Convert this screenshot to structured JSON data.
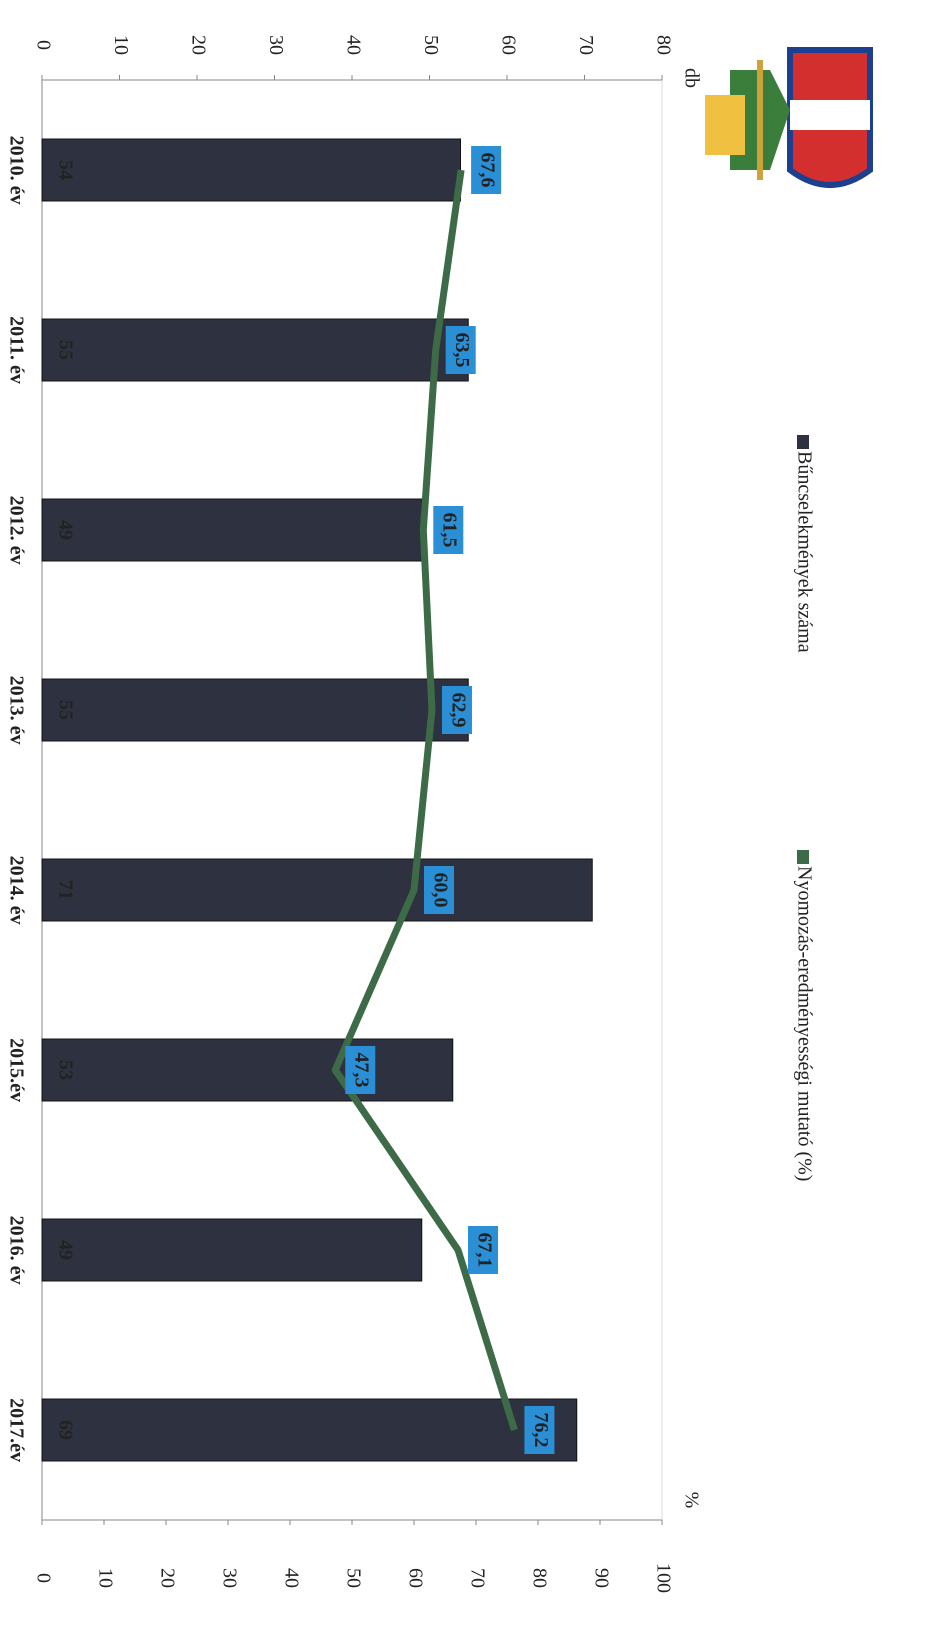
{
  "chart_data": {
    "type": "bar",
    "categories": [
      "2010. év",
      "2011. év",
      "2012. év",
      "2013. év",
      "2014. év",
      "2015.év",
      "2016. év",
      "2017.év"
    ],
    "series": [
      {
        "name": "Bűncselekmények száma",
        "type": "bar",
        "color": "#2e3240",
        "values": [
          54,
          55,
          49,
          55,
          71,
          53,
          49,
          69
        ]
      },
      {
        "name": "Nyomozás-eredményességi mutató (%)",
        "type": "line",
        "axis": "y2",
        "color": "#3d6b47",
        "values": [
          67.6,
          63.5,
          61.5,
          62.9,
          60.0,
          47.3,
          67.1,
          76.2
        ],
        "value_labels": [
          "67,6",
          "63,5",
          "61,5",
          "62,9",
          "60,0",
          "47,3",
          "67,1",
          "76,2"
        ]
      }
    ],
    "ylabel": "db",
    "y2label": "%",
    "ylim": [
      0,
      80
    ],
    "yticks": [
      0,
      10,
      20,
      30,
      40,
      50,
      60,
      70,
      80
    ],
    "y2lim": [
      0,
      100
    ],
    "y2ticks": [
      0,
      10,
      20,
      30,
      40,
      50,
      60,
      70,
      80,
      90,
      100
    ]
  }
}
